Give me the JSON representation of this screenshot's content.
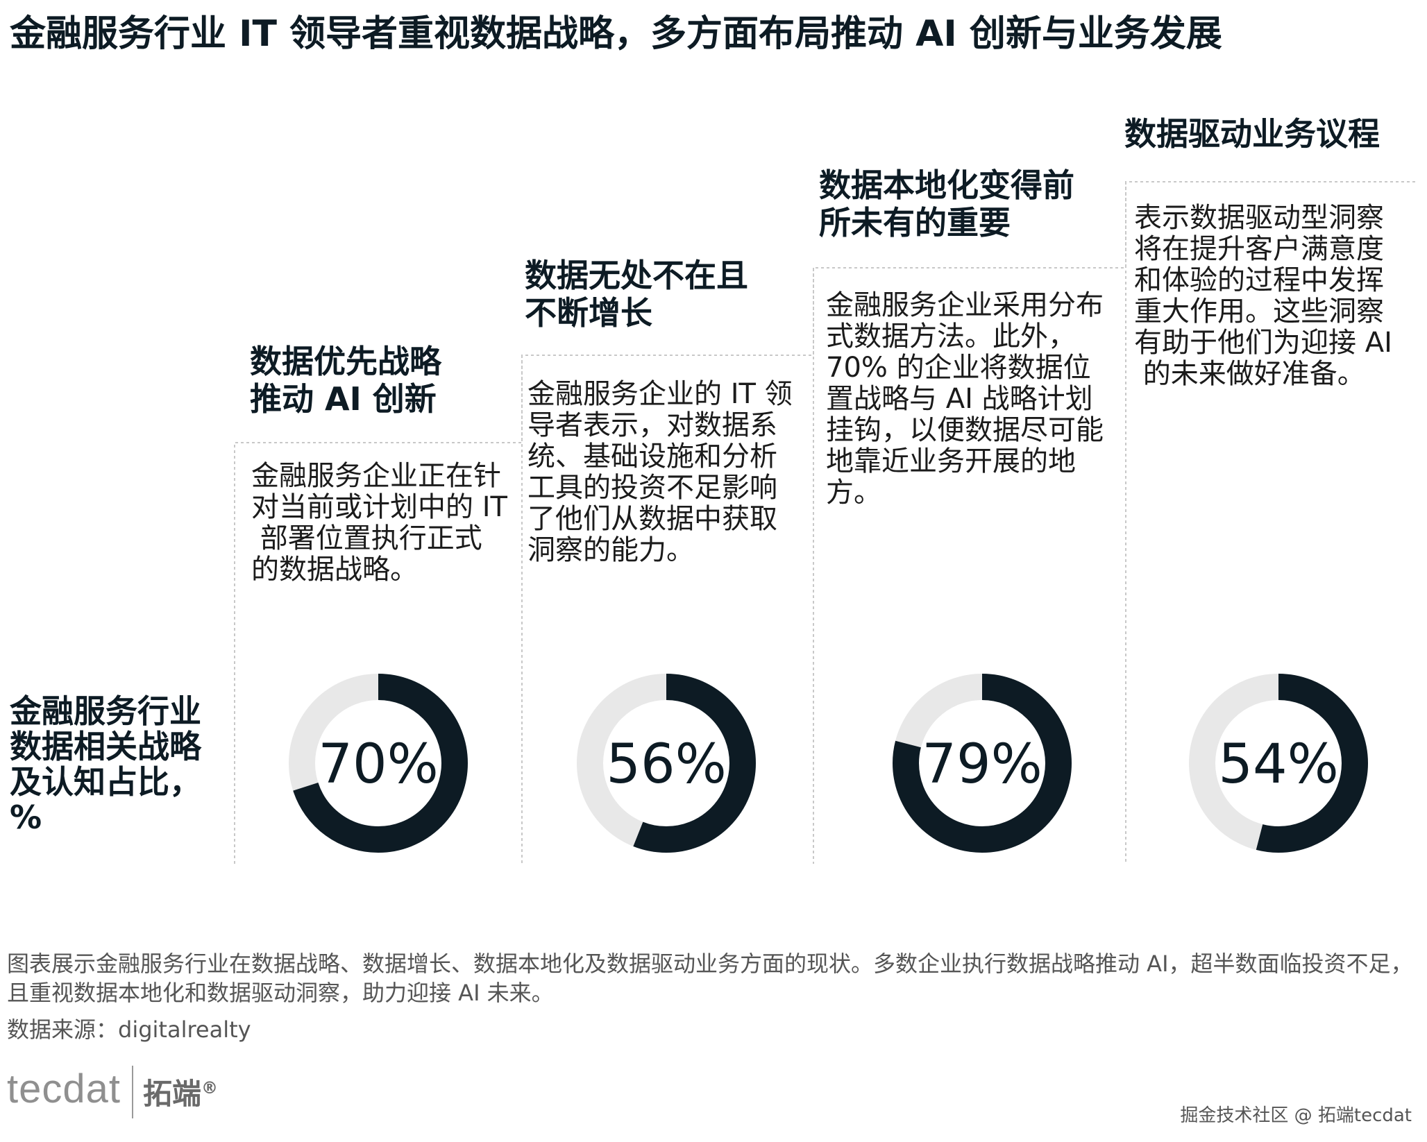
{
  "title": "金融服务行业 IT 领导者重视数据战略，多方面布局推动 AI 创新与业务发展",
  "side_label": "金融服务行业数据相关战略及认知占比，%",
  "steps": [
    {
      "title_lines": [
        "数据优先战略",
        "推动 AI 创新"
      ],
      "desc_lines": [
        "金融服务企业正在针",
        "对当前或计划中的 IT",
        " 部署位置执行正式",
        "的数据战略。"
      ],
      "value": 70,
      "label": "70%"
    },
    {
      "title_lines": [
        "数据无处不在且",
        "不断增长"
      ],
      "desc_lines": [
        "金融服务企业的 IT 领",
        "导者表示，对数据系",
        "统、基础设施和分析",
        "工具的投资不足影响",
        "了他们从数据中获取",
        "洞察的能力。"
      ],
      "value": 56,
      "label": "56%"
    },
    {
      "title_lines": [
        "数据本地化变得前",
        "所未有的重要"
      ],
      "desc_lines": [
        "金融服务企业采用分布",
        "式数据方法。此外，",
        "70% 的企业将数据位",
        "置战略与 AI 战略计划",
        "挂钩，以便数据尽可能",
        "地靠近业务开展的地",
        "方。"
      ],
      "value": 79,
      "label": "79%"
    },
    {
      "title_lines": [
        "数据驱动业务议程"
      ],
      "desc_lines": [
        "表示数据驱动型洞察",
        "将在提升客户满意度",
        "和体验的过程中发挥",
        "重大作用。这些洞察",
        "有助于他们为迎接 AI",
        " 的未来做好准备。"
      ],
      "value": 54,
      "label": "54%"
    }
  ],
  "caption": "图表展示金融服务行业在数据战略、数据增长、数据本地化及数据驱动业务方面的现状。多数企业执行数据战略推动 AI，超半数面临投资不足，且重视数据本地化和数据驱动洞察，助力迎接 AI 未来。",
  "source": "数据来源：digitalrealty",
  "logo": {
    "tec": "tecdat",
    "cn": "拓端",
    "reg": "®"
  },
  "watermark": "掘金技术社区 @ 拓端tecdat",
  "colors": {
    "filled": "#0d1b24",
    "track": "#e8e8e8",
    "border": "#c8c8c8"
  },
  "chart_data": {
    "type": "pie",
    "subtype": "donut",
    "categories": [
      "数据优先战略推动 AI 创新",
      "数据无处不在且不断增长",
      "数据本地化变得前所未有的重要",
      "数据驱动业务议程"
    ],
    "values": [
      70,
      56,
      79,
      54
    ],
    "unit": "%",
    "ylabel": "金融服务行业数据相关战略及认知占比，%"
  }
}
